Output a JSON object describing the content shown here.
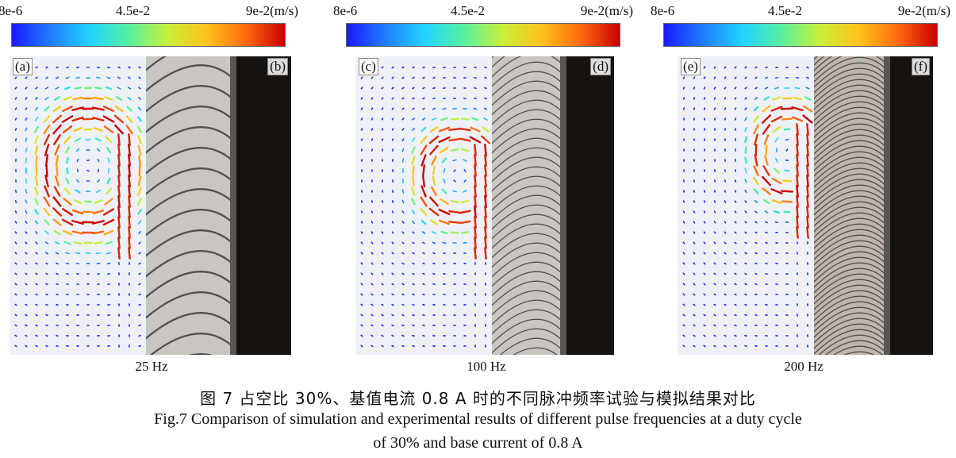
{
  "colorbar": {
    "min_label": "8e-6",
    "mid_label": "4.5e-2",
    "max_label": "9e-2(m/s)",
    "colors": [
      "#1a1aff",
      "#1f7dff",
      "#22d3ff",
      "#56f0a0",
      "#c9f03a",
      "#ffc21a",
      "#ff6a10",
      "#c80000"
    ]
  },
  "panels": [
    {
      "sim_label": "(a)",
      "photo_label": "(b)",
      "frequency": "25 Hz"
    },
    {
      "sim_label": "(c)",
      "photo_label": "(d)",
      "frequency": "100 Hz"
    },
    {
      "sim_label": "(e)",
      "photo_label": "(f)",
      "frequency": "200 Hz"
    }
  ],
  "caption": {
    "chinese": "图 7  占空比 30%、基值电流 0.8 A 时的不同脉冲频率试验与模拟结果对比",
    "english_line1": "Fig.7  Comparison of simulation and experimental results of different pulse frequencies at a duty cycle",
    "english_line2": "of 30% and base current of 0.8 A"
  }
}
